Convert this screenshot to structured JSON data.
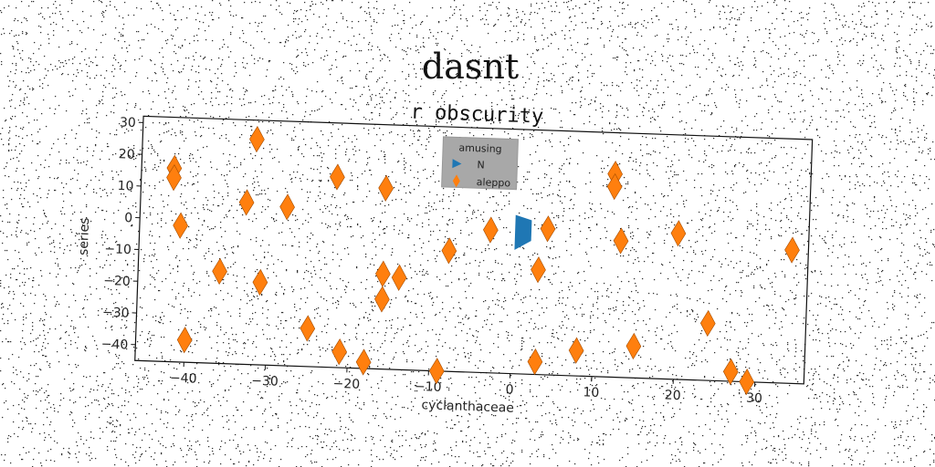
{
  "chart_data": {
    "type": "scatter",
    "suptitle": "dasnt",
    "title": "r obscurity",
    "xlabel": "cyclanthaceae",
    "ylabel": "series",
    "xlim": [
      -46,
      36
    ],
    "ylim": [
      -45,
      32
    ],
    "xticks": [
      -40,
      -30,
      -20,
      -10,
      0,
      10,
      20,
      30
    ],
    "yticks": [
      30,
      20,
      10,
      0,
      -10,
      -20,
      -30,
      -40
    ],
    "grid": false,
    "legend": {
      "title": "amusing",
      "placement": "top-center",
      "background": "#a8a8a8",
      "entries": [
        {
          "name": "N",
          "color": "#1f77b4",
          "marker": "triangle-right"
        },
        {
          "name": "aleppo",
          "color": "#ff7f0e",
          "marker": "diamond"
        }
      ]
    },
    "series": [
      {
        "name": "N",
        "color": "#1f77b4",
        "marker": "polygon",
        "points": [
          [
            0,
            5
          ],
          [
            2,
            3.5
          ],
          [
            2,
            -3
          ],
          [
            0,
            -6
          ]
        ]
      },
      {
        "name": "aleppo",
        "color": "#ff7f0e",
        "marker": "diamond",
        "points": [
          [
            -42,
            16
          ],
          [
            -42,
            13
          ],
          [
            -41,
            -2
          ],
          [
            -32,
            26
          ],
          [
            -33,
            6
          ],
          [
            -28,
            5
          ],
          [
            -22,
            15
          ],
          [
            -16,
            12
          ],
          [
            -36,
            -16
          ],
          [
            -31,
            -19
          ],
          [
            -16,
            -15
          ],
          [
            -14,
            -16
          ],
          [
            -16,
            -23
          ],
          [
            -8,
            -7
          ],
          [
            -3,
            0
          ],
          [
            4,
            1
          ],
          [
            3,
            -12
          ],
          [
            12,
            19
          ],
          [
            12,
            15
          ],
          [
            13,
            -2
          ],
          [
            20,
            1
          ],
          [
            34,
            -3
          ],
          [
            24,
            -27
          ],
          [
            15,
            -35
          ],
          [
            8,
            -37
          ],
          [
            3,
            -41
          ],
          [
            -25,
            -33
          ],
          [
            -21,
            -40
          ],
          [
            -18,
            -43
          ],
          [
            -9,
            -45
          ],
          [
            -40,
            -38
          ],
          [
            27,
            -42
          ],
          [
            29,
            -45
          ]
        ]
      }
    ]
  }
}
